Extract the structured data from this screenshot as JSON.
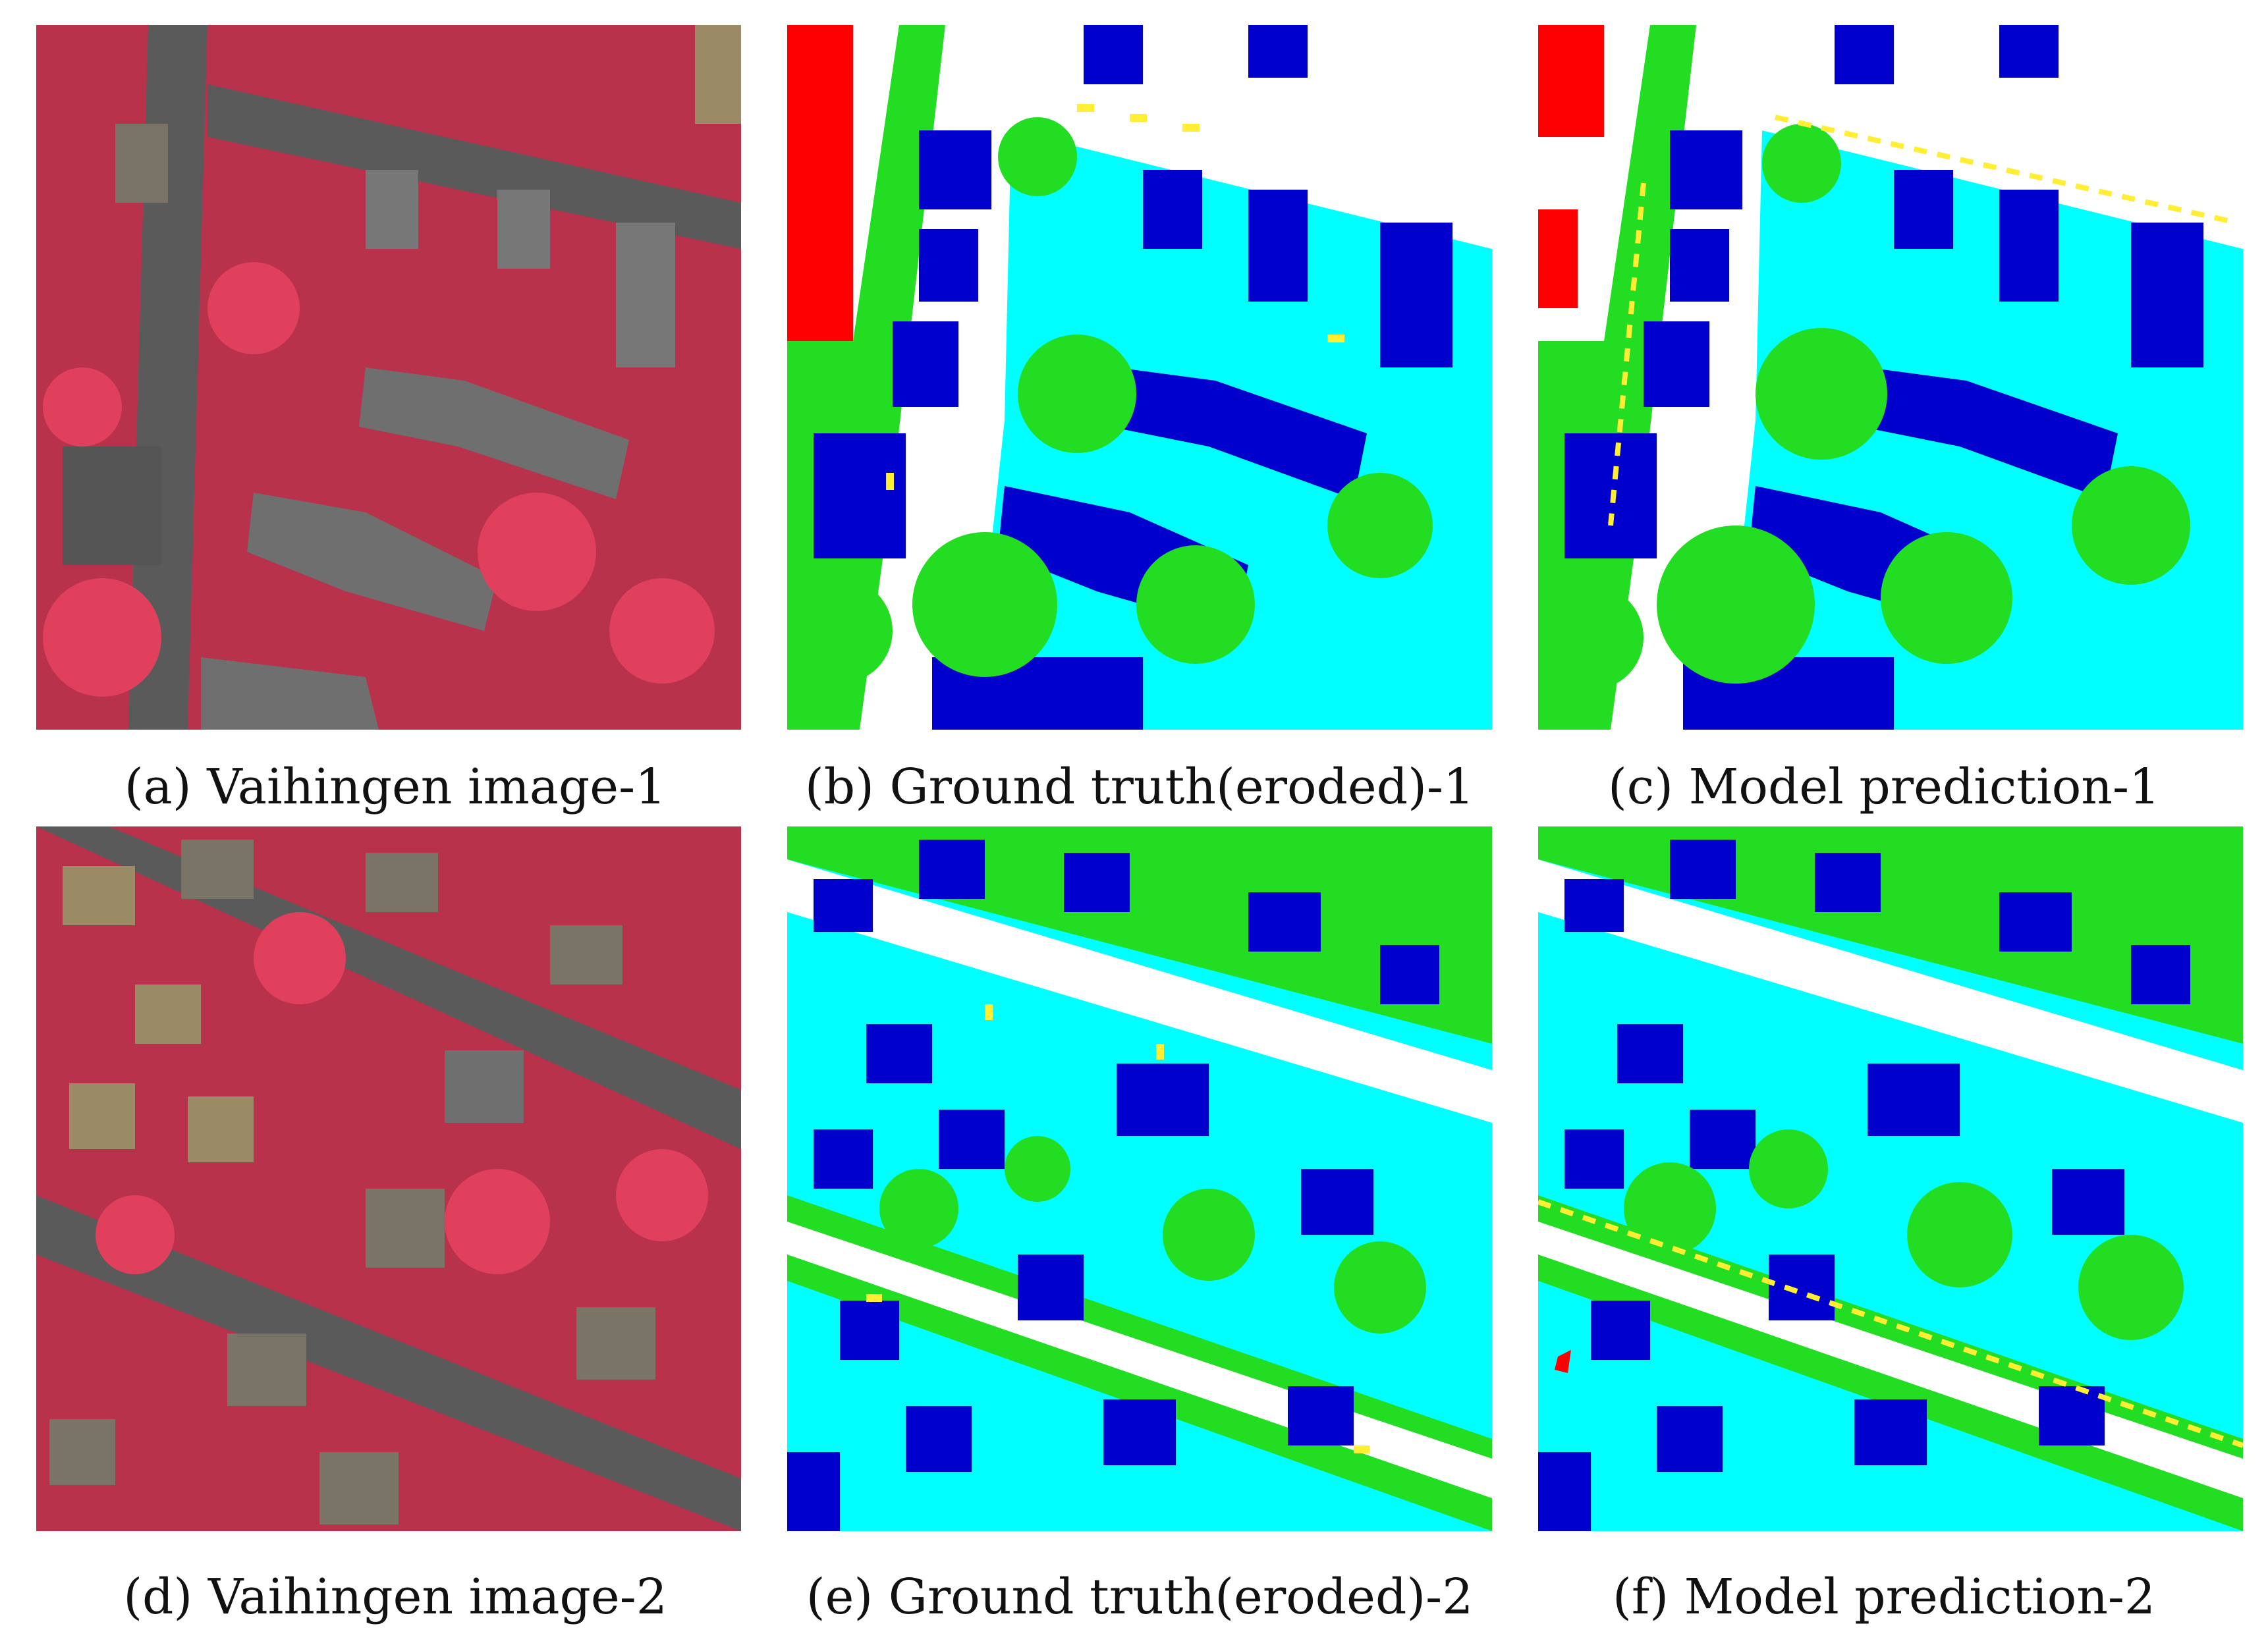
{
  "figure": {
    "panels": [
      {
        "id": "a",
        "caption": "(a) Vaihingen image-1",
        "kind": "aerial"
      },
      {
        "id": "b",
        "caption": "(b) Ground truth(eroded)-1",
        "kind": "label-map"
      },
      {
        "id": "c",
        "caption": "(c) Model prediction-1",
        "kind": "label-map"
      },
      {
        "id": "d",
        "caption": "(d) Vaihingen image-2",
        "kind": "aerial"
      },
      {
        "id": "e",
        "caption": "(e) Ground truth(eroded)-2",
        "kind": "label-map"
      },
      {
        "id": "f",
        "caption": "(f) Model prediction-2",
        "kind": "label-map"
      }
    ]
  },
  "palette": {
    "impervious": "#ffffff",
    "building": "#0000cc",
    "low_vegetation": "#00ffff",
    "tree": "#22dd22",
    "car": "#ffee33",
    "clutter": "#ff0000",
    "aerial_vegetation": "#d83a55",
    "aerial_road": "#5a5a5a",
    "aerial_roof": "#7a7466",
    "aerial_roof_warm": "#9a8a66"
  }
}
